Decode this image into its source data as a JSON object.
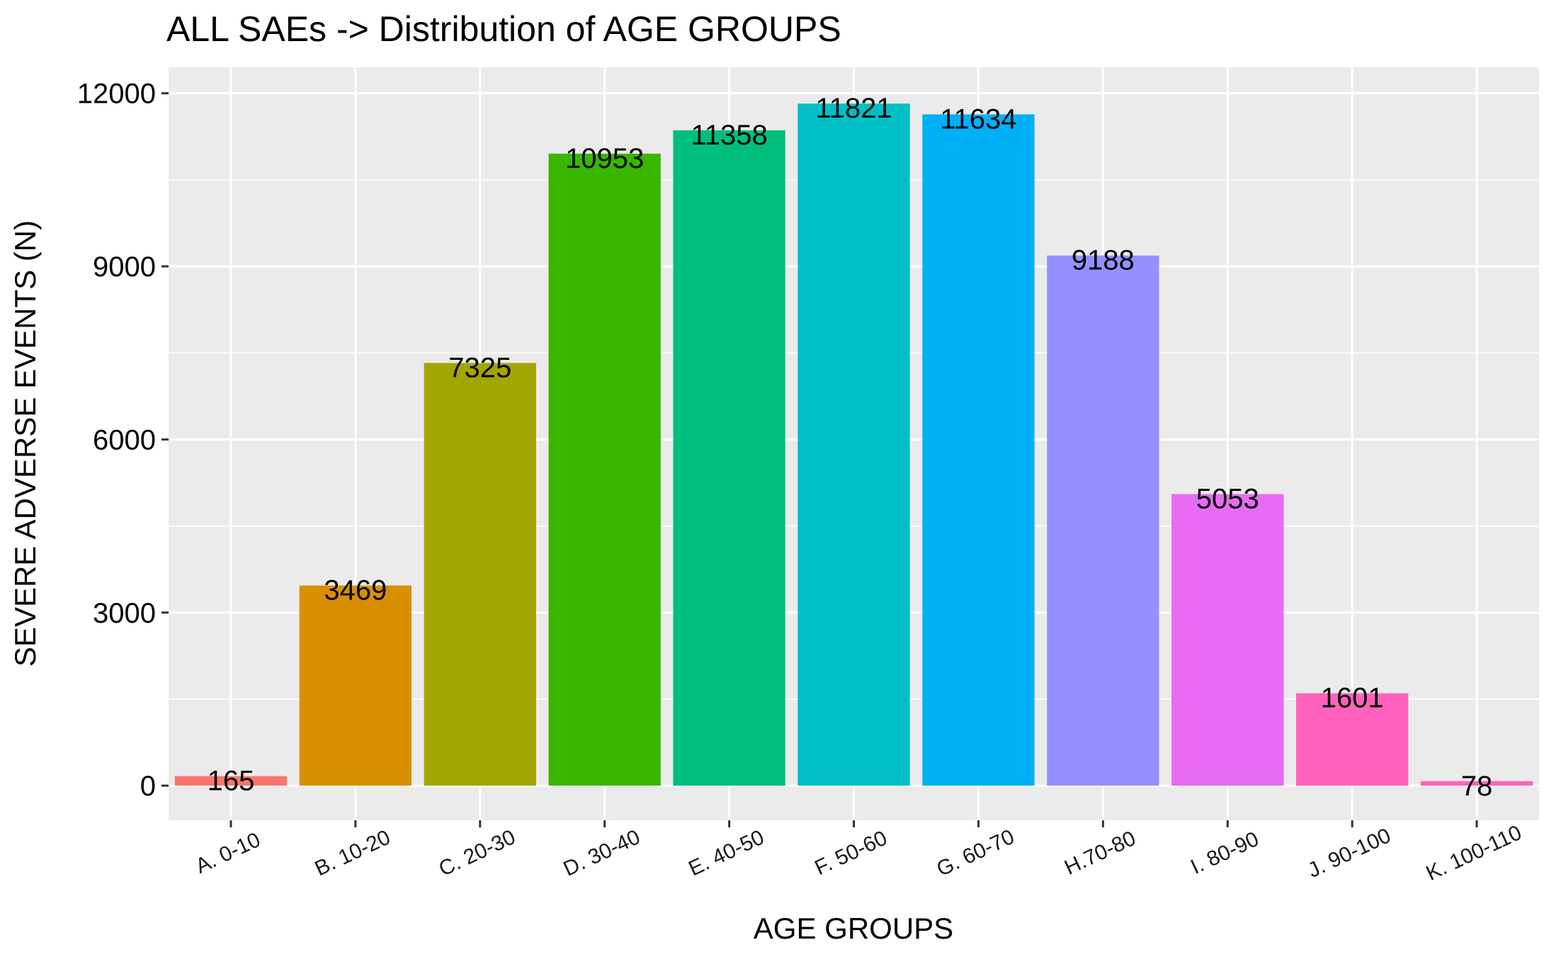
{
  "chart_data": {
    "type": "bar",
    "title": "ALL SAEs -> Distribution of AGE GROUPS",
    "xlabel": "AGE GROUPS",
    "ylabel": "SEVERE ADVERSE EVENTS (N)",
    "categories": [
      "A. 0-10",
      "B. 10-20",
      "C. 20-30",
      "D. 30-40",
      "E. 40-50",
      "F. 50-60",
      "G. 60-70",
      "H.70-80",
      "I. 80-90",
      "J. 90-100",
      "K. 100-110"
    ],
    "values": [
      165,
      3469,
      7325,
      10953,
      11358,
      11821,
      11634,
      9188,
      5053,
      1601,
      78
    ],
    "value_labels": [
      "165",
      "3469",
      "7325",
      "10953",
      "11358",
      "11821",
      "11634",
      "9188",
      "5053",
      "1601",
      "78"
    ],
    "colors": [
      "#F8766D",
      "#D89000",
      "#A3A500",
      "#39B600",
      "#00BF7D",
      "#00BFC4",
      "#00B0F6",
      "#9590FF",
      "#E76BF3",
      "#FF62BC",
      "#FF62BC"
    ],
    "yticks": [
      0,
      3000,
      6000,
      9000,
      12000
    ],
    "ytick_labels": [
      "0",
      "3000",
      "6000",
      "9000",
      "12000"
    ],
    "ylim": [
      -600,
      12450
    ],
    "grid": true,
    "legend": "none",
    "panel_background": "#EBEBEB",
    "grid_color": "#FFFFFF"
  }
}
